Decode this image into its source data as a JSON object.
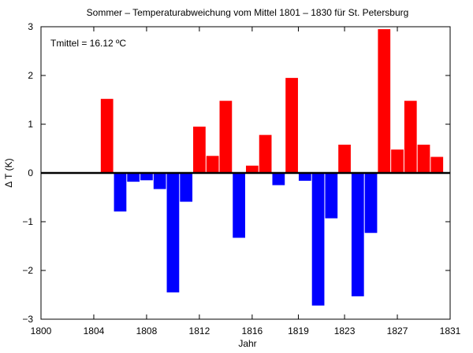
{
  "chart_data": {
    "type": "bar",
    "title": "Sommer – Temperaturabweichung vom Mittel 1801 – 1830 für St. Petersburg",
    "xlabel": "Jahr",
    "ylabel": "Δ T (K)",
    "annotation": "Tmittel = 16.12 ºC",
    "xlim": [
      1800,
      1831
    ],
    "ylim": [
      -3,
      3
    ],
    "x_ticks": [
      {
        "value": 1800,
        "label": "1800"
      },
      {
        "value": 1804,
        "label": "1804"
      },
      {
        "value": 1808,
        "label": "1808"
      },
      {
        "value": 1812,
        "label": "1812"
      },
      {
        "value": 1816,
        "label": "1816"
      },
      {
        "value": 1819.5,
        "label": "1819"
      },
      {
        "value": 1823,
        "label": "1823"
      },
      {
        "value": 1827,
        "label": "1827"
      },
      {
        "value": 1831,
        "label": "1831"
      }
    ],
    "y_ticks": [
      {
        "value": 3,
        "label": "3"
      },
      {
        "value": 2,
        "label": "2"
      },
      {
        "value": 1,
        "label": "1"
      },
      {
        "value": 0,
        "label": "0"
      },
      {
        "value": -1,
        "label": "−1"
      },
      {
        "value": -2,
        "label": "−2"
      },
      {
        "value": -3,
        "label": "−3"
      }
    ],
    "years": [
      1805,
      1806,
      1807,
      1808,
      1809,
      1810,
      1811,
      1812,
      1813,
      1814,
      1815,
      1816,
      1817,
      1818,
      1819,
      1820,
      1821,
      1822,
      1823,
      1824,
      1825,
      1826,
      1827,
      1828,
      1829,
      1830
    ],
    "values": [
      1.52,
      -0.79,
      -0.18,
      -0.15,
      -0.33,
      -2.45,
      -0.59,
      0.95,
      0.35,
      1.48,
      -1.33,
      0.15,
      0.78,
      -0.25,
      1.95,
      -0.16,
      -2.72,
      -0.93,
      0.58,
      -2.53,
      -1.23,
      2.95,
      0.48,
      1.48,
      0.58,
      0.33
    ],
    "colors": {
      "positive": "#ff0000",
      "negative": "#0000ff",
      "baseline": "#000000"
    }
  }
}
